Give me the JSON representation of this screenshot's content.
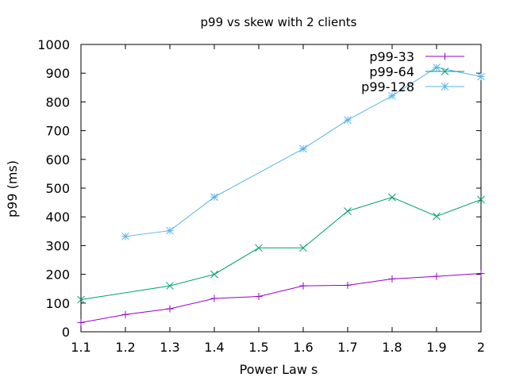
{
  "chart_data": {
    "type": "line",
    "title": "p99 vs skew with 2 clients",
    "xlabel": "Power Law s",
    "ylabel": "p99 (ms)",
    "xlim": [
      1.1,
      2
    ],
    "ylim": [
      0,
      1000
    ],
    "xticks": [
      "1.1",
      "1.2",
      "1.3",
      "1.4",
      "1.5",
      "1.6",
      "1.7",
      "1.8",
      "1.9",
      "2"
    ],
    "yticks": [
      "0",
      "100",
      "200",
      "300",
      "400",
      "500",
      "600",
      "700",
      "800",
      "900",
      "1000"
    ],
    "grid": false,
    "legend_position": "top-right",
    "series": [
      {
        "name": "p99-33",
        "color": "#9400d3",
        "marker": "plus",
        "x": [
          1.1,
          1.2,
          1.3,
          1.4,
          1.5,
          1.6,
          1.7,
          1.8,
          1.9,
          2.0
        ],
        "y": [
          32,
          60,
          80,
          116,
          123,
          160,
          162,
          184,
          193,
          203
        ]
      },
      {
        "name": "p99-64",
        "color": "#009e73",
        "marker": "cross",
        "x": [
          1.1,
          1.3,
          1.4,
          1.5,
          1.6,
          1.7,
          1.8,
          1.9,
          2.0
        ],
        "y": [
          112,
          160,
          200,
          292,
          292,
          420,
          468,
          402,
          460
        ]
      },
      {
        "name": "p99-128",
        "color": "#56b4e9",
        "marker": "star",
        "x": [
          1.2,
          1.3,
          1.4,
          1.6,
          1.7,
          1.8,
          1.9,
          2.0
        ],
        "y": [
          332,
          352,
          469,
          637,
          737,
          821,
          920,
          888
        ]
      }
    ]
  }
}
